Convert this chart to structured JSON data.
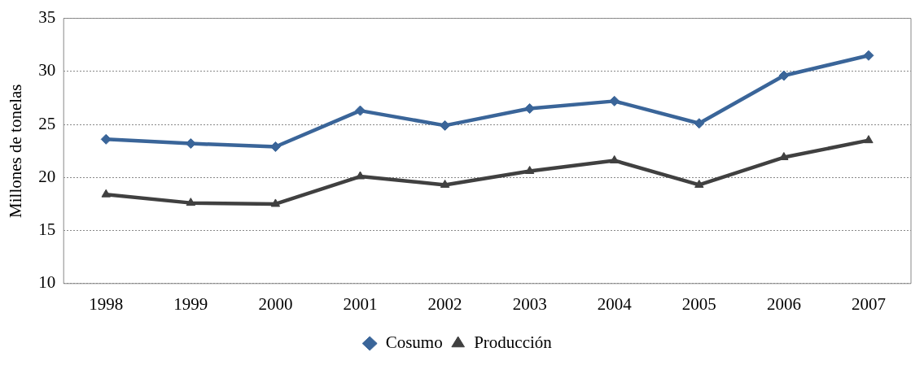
{
  "chart_data": {
    "type": "line",
    "ylabel": "Millones de tonelas",
    "categories": [
      "1998",
      "1999",
      "2000",
      "2001",
      "2002",
      "2003",
      "2004",
      "2005",
      "2006",
      "2007"
    ],
    "series": [
      {
        "name": "Cosumo",
        "color": "#3a6599",
        "marker": "diamond",
        "values": [
          23.6,
          23.2,
          22.9,
          26.3,
          24.9,
          26.5,
          27.2,
          25.1,
          29.6,
          31.5
        ]
      },
      {
        "name": "Producción",
        "color": "#404040",
        "marker": "triangle",
        "values": [
          18.4,
          17.6,
          17.5,
          20.1,
          19.3,
          20.6,
          21.6,
          19.3,
          21.9,
          23.5
        ]
      }
    ],
    "ylim": [
      10,
      35
    ],
    "yticks": [
      10,
      15,
      20,
      25,
      30,
      35
    ],
    "grid": "y",
    "legend": "bottom",
    "line_style": "solid"
  }
}
